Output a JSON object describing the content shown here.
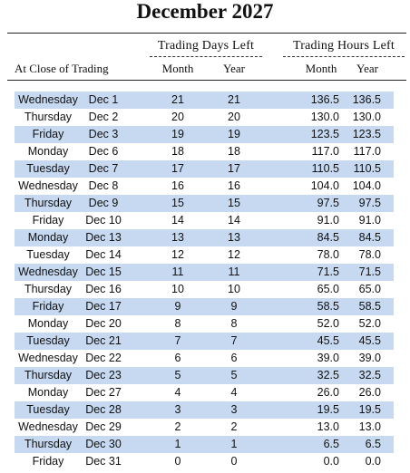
{
  "title": "December 2027",
  "headers": {
    "at_close": "At Close of Trading",
    "days_group": "Trading Days Left",
    "hours_group": "Trading Hours Left",
    "month": "Month",
    "year": "Year"
  },
  "colors": {
    "shade": "#c6d9f1"
  },
  "rows": [
    {
      "day": "Wednesday",
      "date": "Dec 1",
      "days_month": "21",
      "days_year": "21",
      "hours_month": "136.5",
      "hours_year": "136.5"
    },
    {
      "day": "Thursday",
      "date": "Dec 2",
      "days_month": "20",
      "days_year": "20",
      "hours_month": "130.0",
      "hours_year": "130.0"
    },
    {
      "day": "Friday",
      "date": "Dec 3",
      "days_month": "19",
      "days_year": "19",
      "hours_month": "123.5",
      "hours_year": "123.5"
    },
    {
      "day": "Monday",
      "date": "Dec 6",
      "days_month": "18",
      "days_year": "18",
      "hours_month": "117.0",
      "hours_year": "117.0"
    },
    {
      "day": "Tuesday",
      "date": "Dec 7",
      "days_month": "17",
      "days_year": "17",
      "hours_month": "110.5",
      "hours_year": "110.5"
    },
    {
      "day": "Wednesday",
      "date": "Dec 8",
      "days_month": "16",
      "days_year": "16",
      "hours_month": "104.0",
      "hours_year": "104.0"
    },
    {
      "day": "Thursday",
      "date": "Dec 9",
      "days_month": "15",
      "days_year": "15",
      "hours_month": "97.5",
      "hours_year": "97.5"
    },
    {
      "day": "Friday",
      "date": "Dec 10",
      "days_month": "14",
      "days_year": "14",
      "hours_month": "91.0",
      "hours_year": "91.0"
    },
    {
      "day": "Monday",
      "date": "Dec 13",
      "days_month": "13",
      "days_year": "13",
      "hours_month": "84.5",
      "hours_year": "84.5"
    },
    {
      "day": "Tuesday",
      "date": "Dec 14",
      "days_month": "12",
      "days_year": "12",
      "hours_month": "78.0",
      "hours_year": "78.0"
    },
    {
      "day": "Wednesday",
      "date": "Dec 15",
      "days_month": "11",
      "days_year": "11",
      "hours_month": "71.5",
      "hours_year": "71.5"
    },
    {
      "day": "Thursday",
      "date": "Dec 16",
      "days_month": "10",
      "days_year": "10",
      "hours_month": "65.0",
      "hours_year": "65.0"
    },
    {
      "day": "Friday",
      "date": "Dec 17",
      "days_month": "9",
      "days_year": "9",
      "hours_month": "58.5",
      "hours_year": "58.5"
    },
    {
      "day": "Monday",
      "date": "Dec 20",
      "days_month": "8",
      "days_year": "8",
      "hours_month": "52.0",
      "hours_year": "52.0"
    },
    {
      "day": "Tuesday",
      "date": "Dec 21",
      "days_month": "7",
      "days_year": "7",
      "hours_month": "45.5",
      "hours_year": "45.5"
    },
    {
      "day": "Wednesday",
      "date": "Dec 22",
      "days_month": "6",
      "days_year": "6",
      "hours_month": "39.0",
      "hours_year": "39.0"
    },
    {
      "day": "Thursday",
      "date": "Dec 23",
      "days_month": "5",
      "days_year": "5",
      "hours_month": "32.5",
      "hours_year": "32.5"
    },
    {
      "day": "Monday",
      "date": "Dec 27",
      "days_month": "4",
      "days_year": "4",
      "hours_month": "26.0",
      "hours_year": "26.0"
    },
    {
      "day": "Tuesday",
      "date": "Dec 28",
      "days_month": "3",
      "days_year": "3",
      "hours_month": "19.5",
      "hours_year": "19.5"
    },
    {
      "day": "Wednesday",
      "date": "Dec 29",
      "days_month": "2",
      "days_year": "2",
      "hours_month": "13.0",
      "hours_year": "13.0"
    },
    {
      "day": "Thursday",
      "date": "Dec 30",
      "days_month": "1",
      "days_year": "1",
      "hours_month": "6.5",
      "hours_year": "6.5"
    },
    {
      "day": "Friday",
      "date": "Dec 31",
      "days_month": "0",
      "days_year": "0",
      "hours_month": "0.0",
      "hours_year": "0.0"
    }
  ]
}
